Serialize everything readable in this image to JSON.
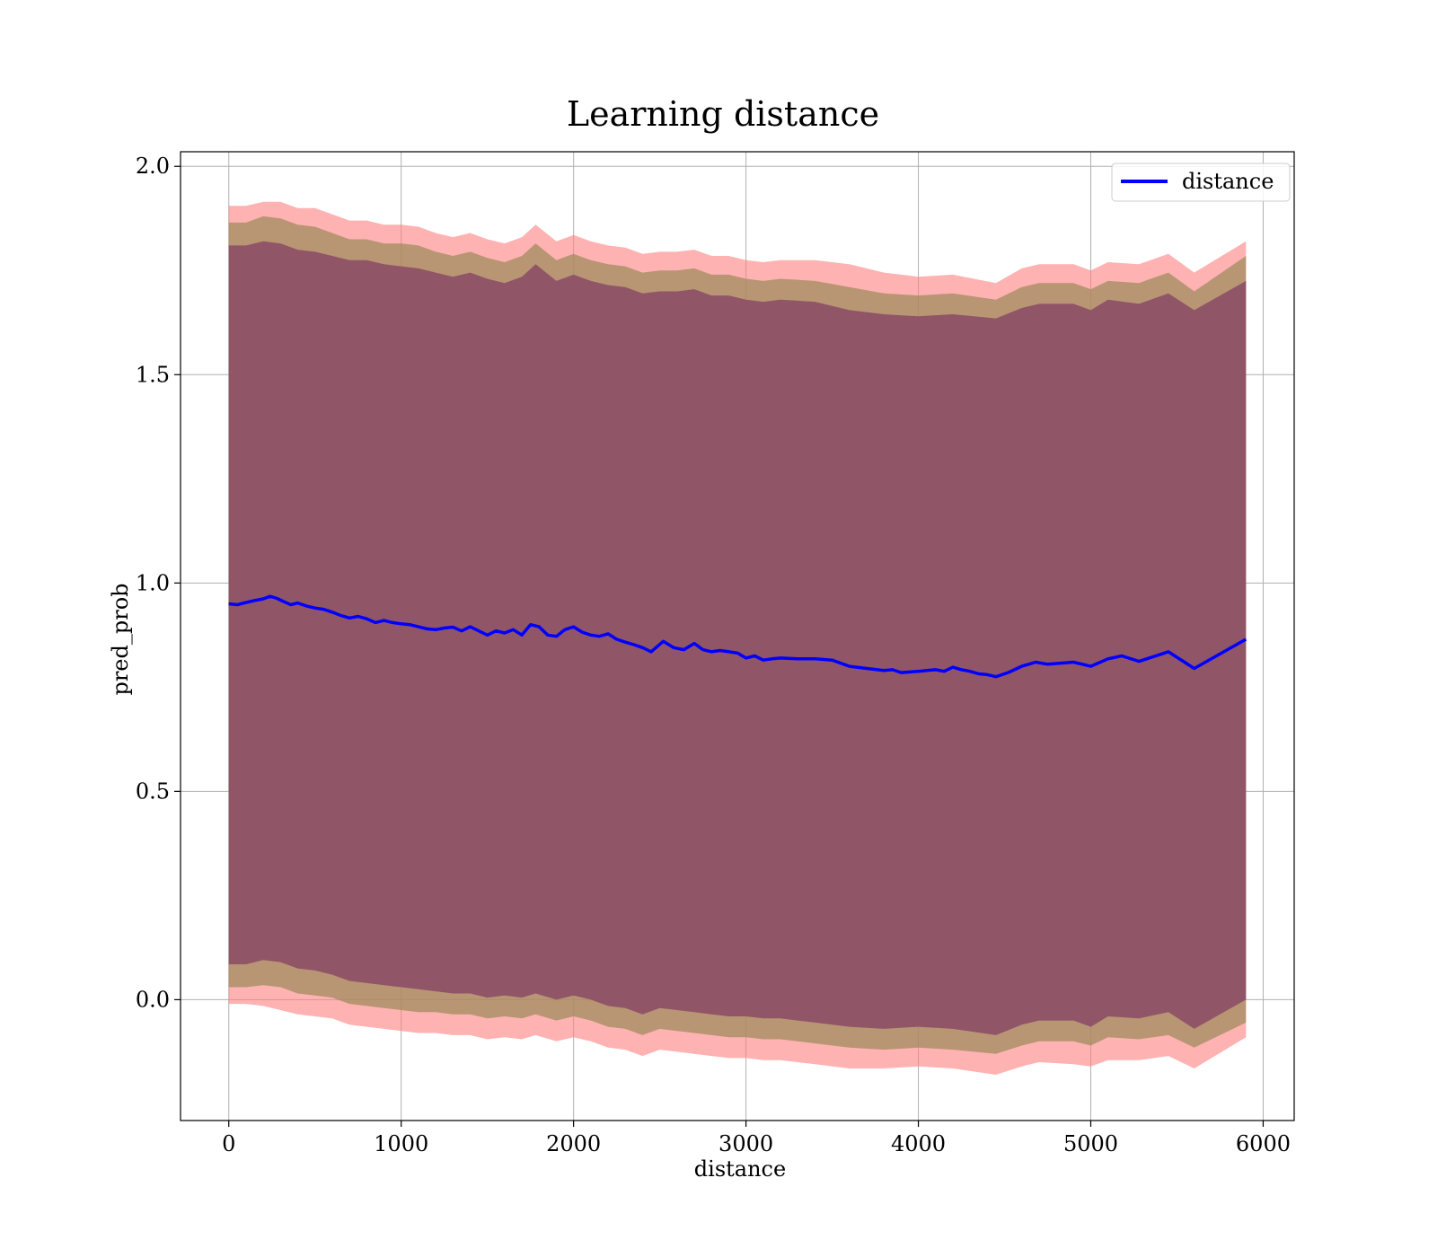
{
  "chart_data": {
    "type": "line",
    "title": "Learning distance",
    "xlabel": "distance",
    "ylabel": "pred_prob",
    "xlim": [
      -280,
      6180
    ],
    "ylim": [
      -0.29,
      2.035
    ],
    "xticks": [
      0,
      1000,
      2000,
      3000,
      4000,
      5000,
      6000
    ],
    "yticks": [
      0.0,
      0.5,
      1.0,
      1.5,
      2.0
    ],
    "xtick_labels": [
      "0",
      "1000",
      "2000",
      "3000",
      "4000",
      "5000",
      "6000"
    ],
    "ytick_labels": [
      "0.0",
      "0.5",
      "1.0",
      "1.5",
      "2.0"
    ],
    "grid": true,
    "legend": {
      "position": "top-right",
      "entries": [
        "distance"
      ]
    },
    "colors": {
      "line": "#0000ff",
      "band_outer": "#ff7f7f",
      "band_middle": "#9a8a5a",
      "band_inner": "#8a4a66",
      "grid": "#b0b0b0"
    },
    "series": [
      {
        "name": "distance",
        "x": [
          0,
          50,
          100,
          150,
          200,
          240,
          280,
          320,
          360,
          400,
          450,
          500,
          550,
          600,
          650,
          700,
          750,
          800,
          850,
          900,
          950,
          1000,
          1050,
          1100,
          1150,
          1200,
          1250,
          1300,
          1350,
          1400,
          1450,
          1500,
          1550,
          1600,
          1650,
          1700,
          1750,
          1800,
          1850,
          1900,
          1950,
          2000,
          2050,
          2100,
          2150,
          2200,
          2250,
          2300,
          2350,
          2400,
          2450,
          2520,
          2580,
          2640,
          2700,
          2750,
          2800,
          2850,
          2900,
          2950,
          3000,
          3050,
          3100,
          3150,
          3200,
          3300,
          3400,
          3500,
          3600,
          3700,
          3800,
          3850,
          3900,
          4000,
          4050,
          4100,
          4150,
          4200,
          4250,
          4300,
          4350,
          4400,
          4450,
          4520,
          4600,
          4680,
          4750,
          4900,
          5000,
          5100,
          5180,
          5280,
          5450,
          5600,
          5900
        ],
        "y": [
          0.95,
          0.948,
          0.953,
          0.958,
          0.962,
          0.968,
          0.963,
          0.955,
          0.948,
          0.952,
          0.945,
          0.94,
          0.937,
          0.93,
          0.922,
          0.916,
          0.92,
          0.914,
          0.905,
          0.91,
          0.905,
          0.902,
          0.9,
          0.895,
          0.89,
          0.888,
          0.892,
          0.894,
          0.885,
          0.895,
          0.885,
          0.875,
          0.885,
          0.88,
          0.888,
          0.875,
          0.9,
          0.895,
          0.875,
          0.872,
          0.888,
          0.895,
          0.882,
          0.875,
          0.872,
          0.878,
          0.865,
          0.858,
          0.852,
          0.845,
          0.835,
          0.86,
          0.845,
          0.84,
          0.855,
          0.84,
          0.835,
          0.838,
          0.835,
          0.832,
          0.82,
          0.825,
          0.815,
          0.818,
          0.82,
          0.818,
          0.818,
          0.815,
          0.8,
          0.795,
          0.79,
          0.792,
          0.785,
          0.788,
          0.79,
          0.792,
          0.788,
          0.798,
          0.792,
          0.788,
          0.782,
          0.78,
          0.775,
          0.785,
          0.8,
          0.81,
          0.805,
          0.81,
          0.8,
          0.818,
          0.825,
          0.812,
          0.835,
          0.795,
          0.865
        ]
      }
    ],
    "bands": [
      {
        "name": "outer",
        "x": [
          0,
          100,
          200,
          300,
          400,
          500,
          600,
          700,
          800,
          900,
          1000,
          1100,
          1200,
          1300,
          1400,
          1500,
          1600,
          1700,
          1780,
          1900,
          2000,
          2100,
          2200,
          2300,
          2400,
          2500,
          2600,
          2700,
          2800,
          2900,
          3000,
          3100,
          3200,
          3400,
          3600,
          3800,
          4000,
          4200,
          4450,
          4600,
          4700,
          4900,
          5000,
          5100,
          5280,
          5450,
          5600,
          5900
        ],
        "upper": [
          1.905,
          1.905,
          1.915,
          1.915,
          1.9,
          1.9,
          1.885,
          1.87,
          1.87,
          1.86,
          1.86,
          1.855,
          1.84,
          1.83,
          1.84,
          1.825,
          1.815,
          1.83,
          1.86,
          1.82,
          1.835,
          1.82,
          1.81,
          1.805,
          1.79,
          1.795,
          1.795,
          1.8,
          1.785,
          1.785,
          1.775,
          1.77,
          1.775,
          1.775,
          1.765,
          1.745,
          1.735,
          1.74,
          1.72,
          1.755,
          1.765,
          1.765,
          1.75,
          1.77,
          1.765,
          1.79,
          1.745,
          1.82
        ],
        "lower": [
          -0.01,
          -0.01,
          -0.015,
          -0.025,
          -0.035,
          -0.04,
          -0.045,
          -0.06,
          -0.065,
          -0.07,
          -0.075,
          -0.08,
          -0.08,
          -0.085,
          -0.085,
          -0.095,
          -0.09,
          -0.095,
          -0.085,
          -0.1,
          -0.09,
          -0.1,
          -0.115,
          -0.12,
          -0.135,
          -0.12,
          -0.125,
          -0.13,
          -0.135,
          -0.14,
          -0.14,
          -0.145,
          -0.145,
          -0.155,
          -0.165,
          -0.165,
          -0.16,
          -0.165,
          -0.18,
          -0.16,
          -0.15,
          -0.155,
          -0.16,
          -0.145,
          -0.145,
          -0.135,
          -0.165,
          -0.09
        ]
      },
      {
        "name": "middle",
        "x": [
          0,
          100,
          200,
          300,
          400,
          500,
          600,
          700,
          800,
          900,
          1000,
          1100,
          1200,
          1300,
          1400,
          1500,
          1600,
          1700,
          1780,
          1900,
          2000,
          2100,
          2200,
          2300,
          2400,
          2500,
          2600,
          2700,
          2800,
          2900,
          3000,
          3100,
          3200,
          3400,
          3600,
          3800,
          4000,
          4200,
          4450,
          4600,
          4700,
          4900,
          5000,
          5100,
          5280,
          5450,
          5600,
          5900
        ],
        "upper": [
          1.865,
          1.865,
          1.88,
          1.875,
          1.86,
          1.855,
          1.84,
          1.825,
          1.825,
          1.815,
          1.815,
          1.81,
          1.795,
          1.785,
          1.795,
          1.78,
          1.77,
          1.785,
          1.815,
          1.775,
          1.79,
          1.775,
          1.765,
          1.76,
          1.745,
          1.75,
          1.75,
          1.755,
          1.74,
          1.74,
          1.73,
          1.725,
          1.73,
          1.725,
          1.71,
          1.695,
          1.69,
          1.695,
          1.68,
          1.71,
          1.72,
          1.72,
          1.705,
          1.725,
          1.72,
          1.745,
          1.7,
          1.785
        ],
        "lower": [
          0.03,
          0.03,
          0.035,
          0.03,
          0.015,
          0.01,
          0.005,
          -0.01,
          -0.015,
          -0.02,
          -0.025,
          -0.03,
          -0.03,
          -0.035,
          -0.035,
          -0.045,
          -0.04,
          -0.045,
          -0.035,
          -0.05,
          -0.04,
          -0.05,
          -0.065,
          -0.07,
          -0.085,
          -0.07,
          -0.075,
          -0.08,
          -0.085,
          -0.09,
          -0.09,
          -0.095,
          -0.095,
          -0.105,
          -0.115,
          -0.12,
          -0.115,
          -0.12,
          -0.13,
          -0.11,
          -0.1,
          -0.1,
          -0.11,
          -0.09,
          -0.095,
          -0.085,
          -0.115,
          -0.055
        ]
      },
      {
        "name": "inner",
        "x": [
          0,
          100,
          200,
          300,
          400,
          500,
          600,
          700,
          800,
          900,
          1000,
          1100,
          1200,
          1300,
          1400,
          1500,
          1600,
          1700,
          1780,
          1900,
          2000,
          2100,
          2200,
          2300,
          2400,
          2500,
          2600,
          2700,
          2800,
          2900,
          3000,
          3100,
          3200,
          3400,
          3600,
          3800,
          4000,
          4200,
          4450,
          4600,
          4700,
          4900,
          5000,
          5100,
          5280,
          5450,
          5600,
          5900
        ],
        "upper": [
          1.81,
          1.81,
          1.82,
          1.815,
          1.8,
          1.795,
          1.785,
          1.775,
          1.775,
          1.765,
          1.76,
          1.755,
          1.745,
          1.735,
          1.745,
          1.73,
          1.72,
          1.735,
          1.765,
          1.725,
          1.74,
          1.725,
          1.715,
          1.71,
          1.695,
          1.7,
          1.7,
          1.705,
          1.69,
          1.69,
          1.68,
          1.675,
          1.68,
          1.675,
          1.655,
          1.645,
          1.64,
          1.645,
          1.635,
          1.66,
          1.67,
          1.67,
          1.655,
          1.68,
          1.67,
          1.695,
          1.655,
          1.725
        ],
        "lower": [
          0.085,
          0.085,
          0.095,
          0.09,
          0.075,
          0.07,
          0.06,
          0.045,
          0.04,
          0.035,
          0.03,
          0.025,
          0.02,
          0.015,
          0.015,
          0.005,
          0.01,
          0.005,
          0.015,
          0.0,
          0.01,
          0.0,
          -0.015,
          -0.02,
          -0.035,
          -0.02,
          -0.025,
          -0.03,
          -0.035,
          -0.04,
          -0.04,
          -0.045,
          -0.045,
          -0.055,
          -0.065,
          -0.07,
          -0.065,
          -0.07,
          -0.085,
          -0.06,
          -0.05,
          -0.05,
          -0.065,
          -0.04,
          -0.045,
          -0.03,
          -0.07,
          0.0
        ]
      }
    ]
  }
}
